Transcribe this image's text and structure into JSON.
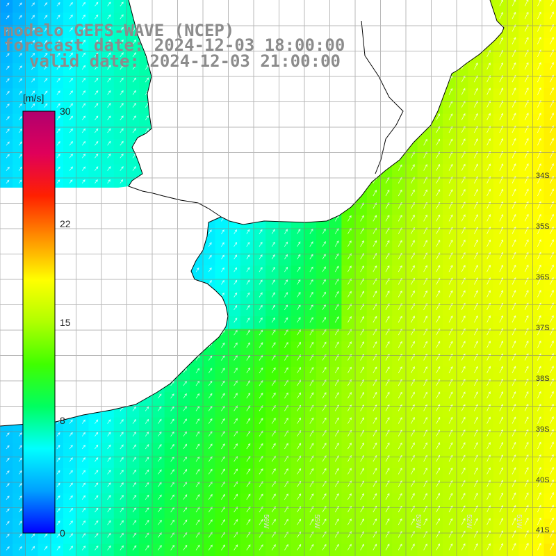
{
  "header": {
    "model": "modelo GEFS-WAVE (NCEP)",
    "forecast": "forecast date: 2024-12-03 18:00:00",
    "valid": "valid date: 2024-12-03 21:00:00"
  },
  "colorbar": {
    "unit": "[m/s]",
    "ticks": [
      "30",
      "22",
      "15",
      "8",
      "0"
    ],
    "tick_values": [
      30,
      22,
      15,
      8,
      0
    ],
    "min": 0,
    "max": 30,
    "colors": [
      "#0000ff",
      "#00a0ff",
      "#00ffff",
      "#00ff60",
      "#40ff00",
      "#b0ff00",
      "#ffff00",
      "#ff9000",
      "#ff2000",
      "#e0005a",
      "#b0006e"
    ]
  },
  "map": {
    "lat_labels": [
      "34S",
      "35S",
      "36S",
      "37S",
      "38S",
      "39S",
      "40S",
      "41S"
    ],
    "lon_labels": [
      "56W",
      "55W",
      "53W",
      "52W",
      "51W"
    ],
    "land_color": "#ffffff",
    "coast_color": "#000000",
    "arrow_color": "#ffffff"
  }
}
